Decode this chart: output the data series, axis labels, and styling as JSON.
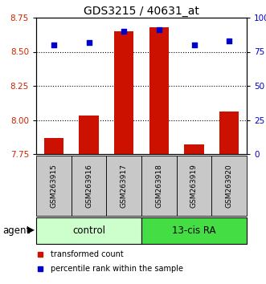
{
  "title": "GDS3215 / 40631_at",
  "samples": [
    "GSM263915",
    "GSM263916",
    "GSM263917",
    "GSM263918",
    "GSM263919",
    "GSM263920"
  ],
  "bar_values": [
    7.87,
    8.03,
    8.65,
    8.68,
    7.82,
    8.06
  ],
  "bar_bottom": 7.75,
  "percentile_values": [
    80,
    82,
    90,
    91,
    80,
    83
  ],
  "ylim_left": [
    7.75,
    8.75
  ],
  "ylim_right": [
    0,
    100
  ],
  "yticks_left": [
    7.75,
    8.0,
    8.25,
    8.5,
    8.75
  ],
  "yticks_right": [
    0,
    25,
    50,
    75,
    100
  ],
  "ytick_labels_right": [
    "0",
    "25",
    "50",
    "75",
    "100%"
  ],
  "bar_color": "#cc1100",
  "marker_color": "#0000cc",
  "control_label": "control",
  "treatment_label": "13-cis RA",
  "agent_label": "agent",
  "legend_bar_label": "transformed count",
  "legend_marker_label": "percentile rank within the sample",
  "control_color": "#ccffcc",
  "treatment_color": "#44dd44",
  "xticklabel_bg": "#c8c8c8",
  "gridline_ticks": [
    8.0,
    8.25,
    8.5
  ],
  "title_fontsize": 10,
  "tick_fontsize": 7.5,
  "sample_fontsize": 6.5,
  "legend_fontsize": 7,
  "agent_fontsize": 8.5
}
